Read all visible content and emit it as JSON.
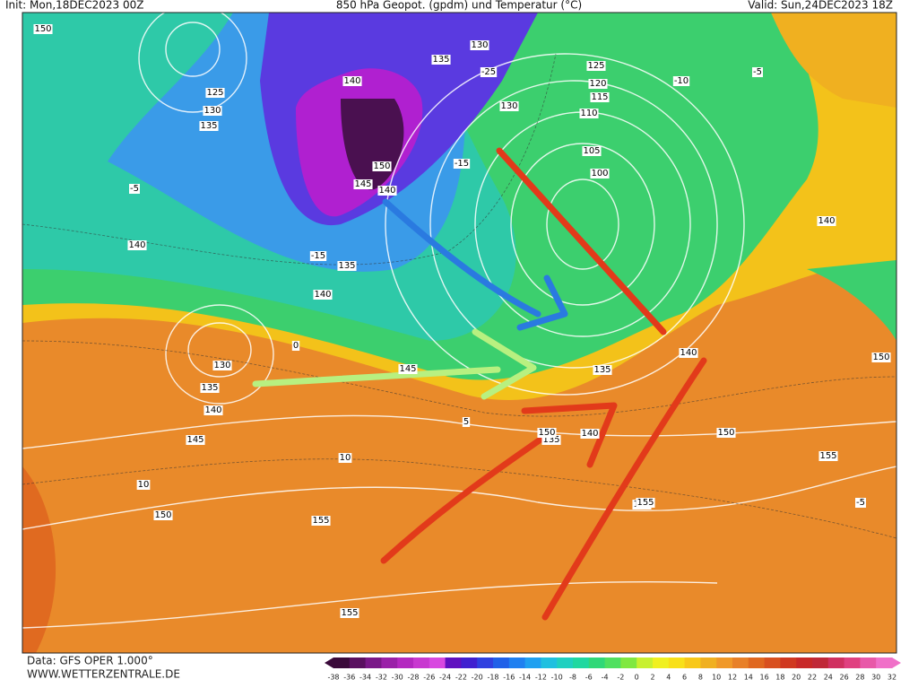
{
  "header": {
    "init": "Init: Mon,18DEC2023 00Z",
    "title": "850 hPa Geopot. (gpdm) und Temperatur (°C)",
    "valid": "Valid: Sun,24DEC2023 18Z"
  },
  "footer": {
    "data": "Data: GFS OPER 1.000°",
    "site": "WWW.WETTERZENTRALE.DE"
  },
  "legend": {
    "labels": [
      -38,
      -36,
      -34,
      -32,
      -30,
      -28,
      -26,
      -24,
      -22,
      -20,
      -18,
      -16,
      -14,
      -12,
      -10,
      -8,
      -6,
      -4,
      -2,
      0,
      2,
      4,
      6,
      8,
      10,
      12,
      14,
      16,
      18,
      20,
      22,
      24,
      26,
      28,
      30,
      32
    ]
  },
  "contour_labels": [
    "150",
    "125",
    "130",
    "135",
    "140",
    "130",
    "135",
    "140",
    "150",
    "145",
    "140",
    "135",
    "130",
    "125",
    "120",
    "115",
    "110",
    "105",
    "100",
    "140",
    "140",
    "135",
    "140",
    "130",
    "135",
    "140",
    "145",
    "145",
    "135",
    "140",
    "150",
    "150",
    "155",
    "150",
    "155",
    "150",
    "155",
    "155",
    "155",
    "-5",
    "-10",
    "-15",
    "-15",
    "0",
    "5",
    "10",
    "10",
    "-25",
    "-5",
    "-5"
  ]
}
